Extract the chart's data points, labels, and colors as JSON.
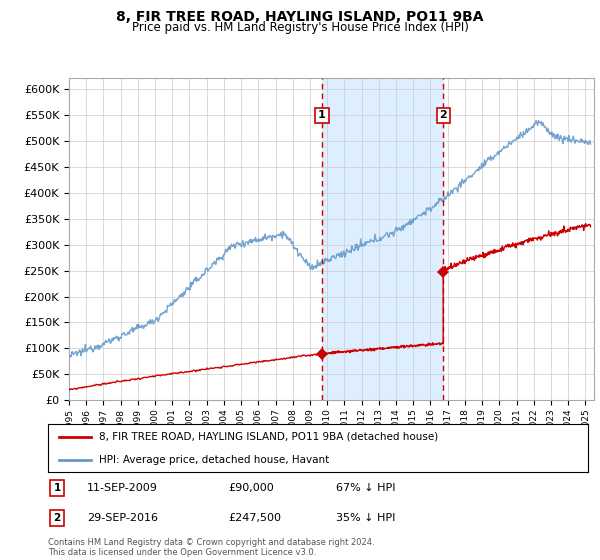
{
  "title": "8, FIR TREE ROAD, HAYLING ISLAND, PO11 9BA",
  "subtitle": "Price paid vs. HM Land Registry's House Price Index (HPI)",
  "ylim": [
    0,
    620000
  ],
  "xlim_start": 1995.0,
  "xlim_end": 2025.5,
  "sale1_x": 2009.69,
  "sale1_y": 90000,
  "sale2_x": 2016.74,
  "sale2_y": 247500,
  "sale1_label": "11-SEP-2009",
  "sale1_price": "£90,000",
  "sale1_note": "67% ↓ HPI",
  "sale2_label": "29-SEP-2016",
  "sale2_price": "£247,500",
  "sale2_note": "35% ↓ HPI",
  "legend_property": "8, FIR TREE ROAD, HAYLING ISLAND, PO11 9BA (detached house)",
  "legend_hpi": "HPI: Average price, detached house, Havant",
  "footer": "Contains HM Land Registry data © Crown copyright and database right 2024.\nThis data is licensed under the Open Government Licence v3.0.",
  "line_color_property": "#cc0000",
  "line_color_hpi": "#6699cc",
  "shade_color": "#ddeeff",
  "grid_color": "#cccccc",
  "background_color": "#ffffff"
}
